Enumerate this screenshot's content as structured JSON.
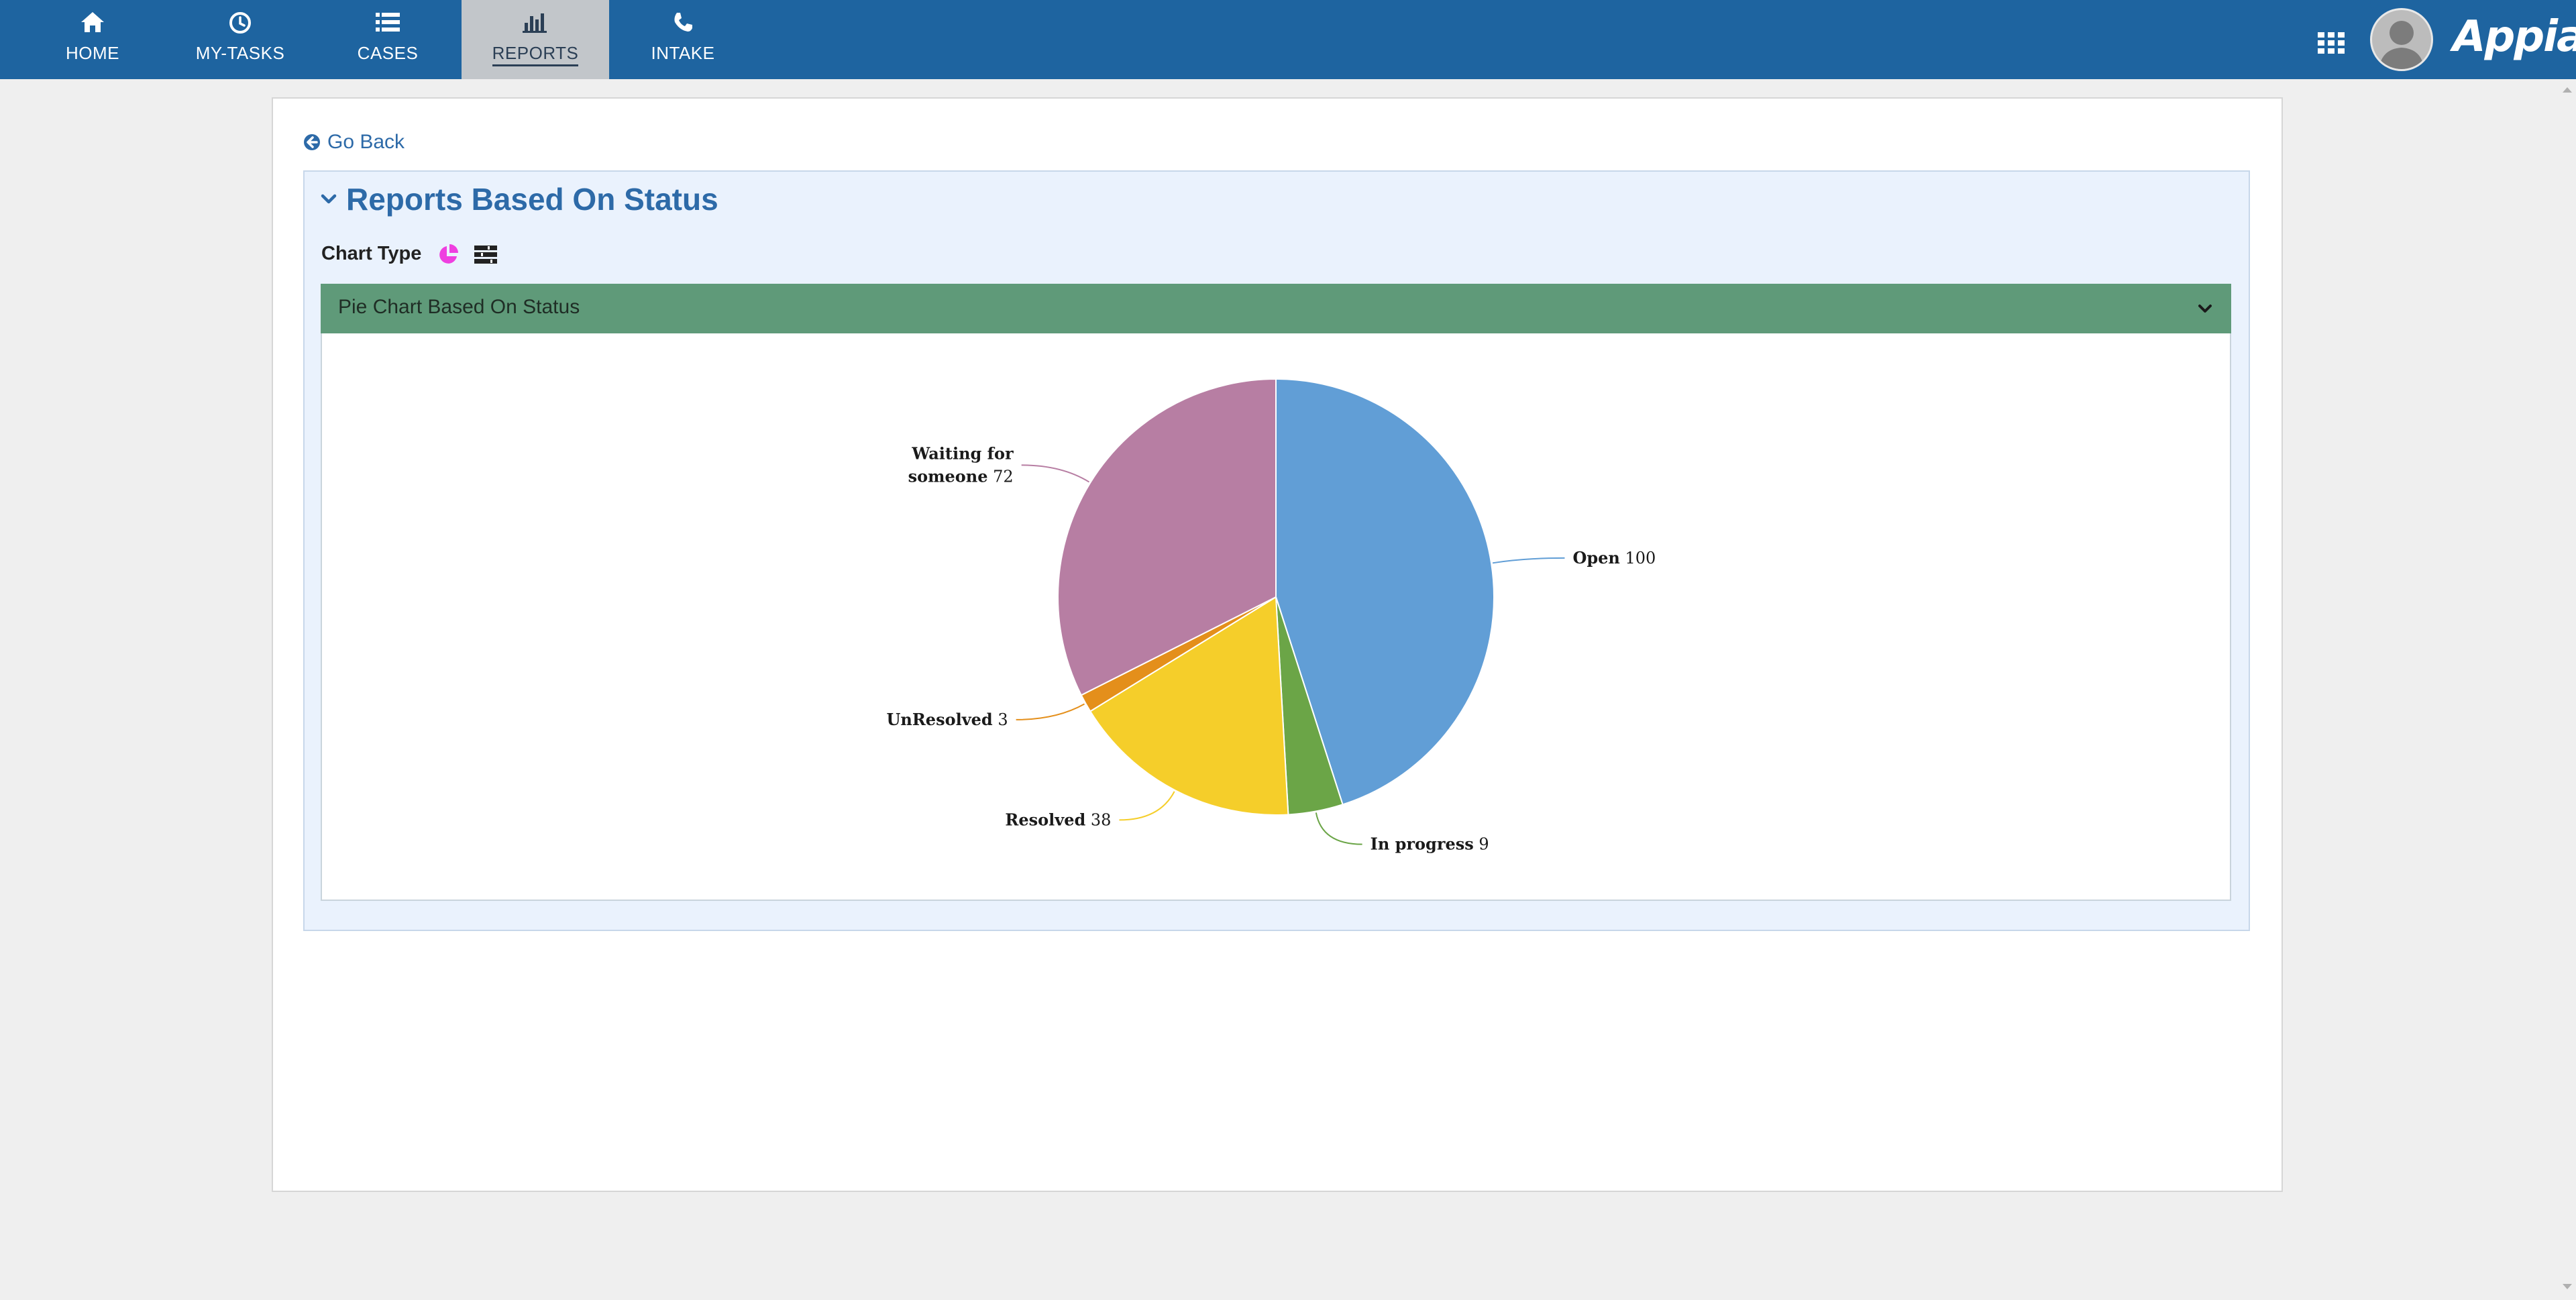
{
  "nav": {
    "items": [
      {
        "label": "HOME",
        "icon": "home-icon"
      },
      {
        "label": "MY-TASKS",
        "icon": "clock-icon"
      },
      {
        "label": "CASES",
        "icon": "list-icon"
      },
      {
        "label": "REPORTS",
        "icon": "bar-chart-icon",
        "active": true
      },
      {
        "label": "INTAKE",
        "icon": "phone-icon"
      }
    ],
    "brand": "Appian"
  },
  "page": {
    "go_back": "Go Back",
    "section_title": "Reports Based On Status",
    "chart_type_label": "Chart Type",
    "chart_panel_title": "Pie Chart Based On Status"
  },
  "colors": {
    "topbar": "#1e64a0",
    "chart_header": "#5f9a79",
    "accent_text": "#2d6aa8",
    "pie_icon": "#ef3fe0"
  },
  "chart_data": {
    "type": "pie",
    "title": "",
    "series": [
      {
        "values": [
          {
            "label": "Open",
            "value": 100,
            "color": "#619ed6"
          },
          {
            "label": "In progress",
            "value": 9,
            "color": "#6ba547"
          },
          {
            "label": "Resolved",
            "value": 38,
            "color": "#f5ce2a"
          },
          {
            "label": "UnResolved",
            "value": 3,
            "color": "#e48f1b"
          },
          {
            "label": "Waiting for someone",
            "value": 72,
            "color": "#b77ea3"
          }
        ]
      }
    ]
  }
}
